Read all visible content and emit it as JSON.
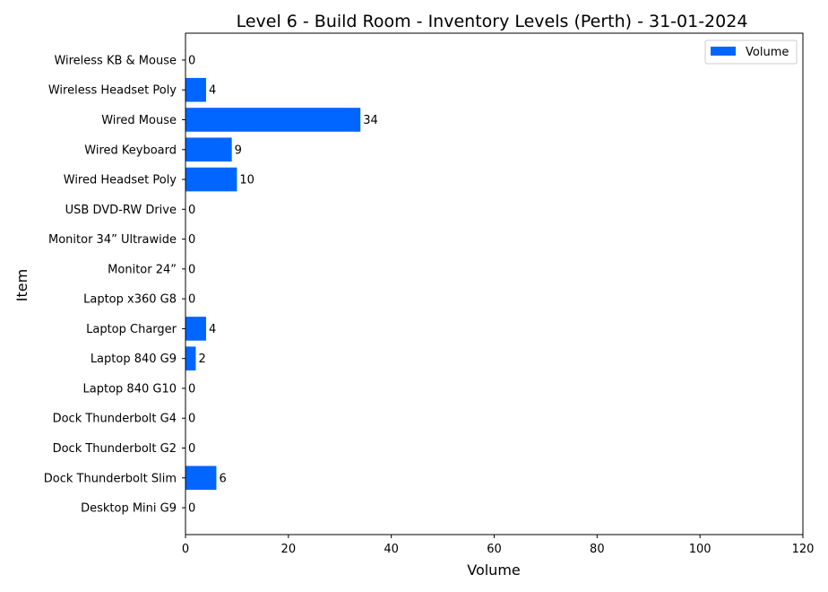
{
  "chart_data": {
    "type": "bar",
    "orientation": "horizontal",
    "title": "Level 6 - Build Room - Inventory Levels (Perth) - 31-01-2024",
    "xlabel": "Volume",
    "ylabel": "Item",
    "xlim": [
      0,
      120
    ],
    "xticks": [
      0,
      20,
      40,
      60,
      80,
      100,
      120
    ],
    "grid": false,
    "legend_position": "top-right",
    "bar_color": "#0066ff",
    "categories": [
      "Desktop Mini G9",
      "Dock Thunderbolt Slim",
      "Dock Thunderbolt G2",
      "Dock Thunderbolt G4",
      "Laptop 840 G10",
      "Laptop 840 G9",
      "Laptop Charger ",
      "Laptop x360 G8",
      "Monitor 24” ",
      "Monitor 34” Ultrawide",
      "USB DVD-RW Drive",
      "Wired Headset Poly",
      "Wired Keyboard",
      "Wired Mouse",
      "Wireless Headset Poly ",
      "Wireless KB & Mouse"
    ],
    "series": [
      {
        "name": "Volume",
        "values": [
          0,
          6,
          0,
          0,
          0,
          2,
          4,
          0,
          0,
          0,
          0,
          10,
          9,
          34,
          4,
          0
        ]
      }
    ]
  }
}
